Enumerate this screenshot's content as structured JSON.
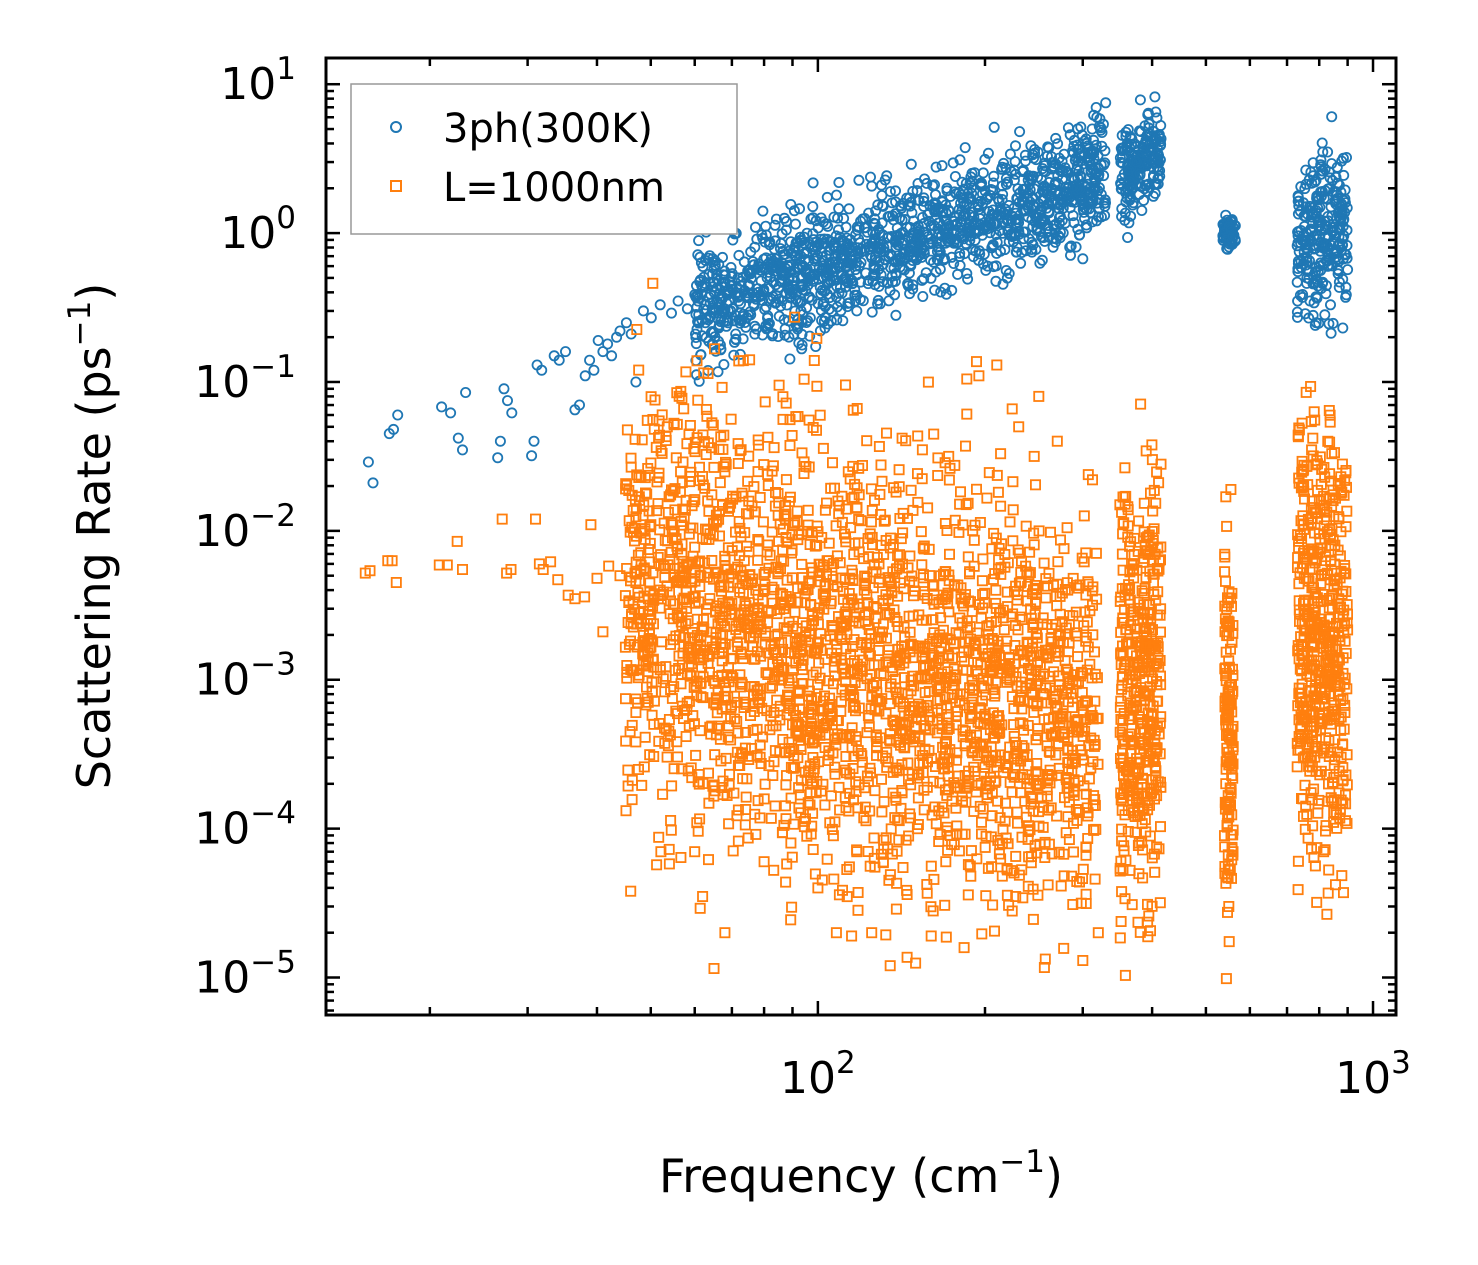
{
  "chart_data": {
    "type": "scatter",
    "xscale": "log",
    "yscale": "log",
    "xlim": [
      13,
      1100
    ],
    "ylim": [
      5.6e-06,
      15
    ],
    "xlabel": "Frequency (cm",
    "xlabel_sup": "−1",
    "xlabel_close": ")",
    "ylabel": "Scattering Rate (ps",
    "ylabel_sup": "−1",
    "ylabel_close": ")",
    "x_ticks": [
      {
        "value": 100,
        "base": "10",
        "exp": "2"
      },
      {
        "value": 1000,
        "base": "10",
        "exp": "3"
      }
    ],
    "y_ticks": [
      {
        "value": 10,
        "base": "10",
        "exp": "1"
      },
      {
        "value": 1,
        "base": "10",
        "exp": "0"
      },
      {
        "value": 0.1,
        "base": "10",
        "exp": "−1"
      },
      {
        "value": 0.01,
        "base": "10",
        "exp": "−2"
      },
      {
        "value": 0.001,
        "base": "10",
        "exp": "−3"
      },
      {
        "value": 0.0001,
        "base": "10",
        "exp": "−4"
      },
      {
        "value": 1e-05,
        "base": "10",
        "exp": "−5"
      }
    ],
    "legend_position": "top-left",
    "series": [
      {
        "name": "3ph(300K)",
        "marker": "circle",
        "color": "#1f77b4",
        "x": [
          15.5,
          15.8,
          16.9,
          17.2,
          17.5,
          21,
          21.8,
          22.5,
          22.9,
          23.2,
          26.5,
          26.8,
          27.2,
          27.6,
          28.1,
          30.5,
          30.8,
          31.2,
          31.8,
          33.5,
          34.2,
          35.1,
          36.5,
          37.2,
          38.1,
          38.8,
          39.5,
          40.2,
          41.0,
          41.8,
          42.5,
          43.4,
          44.0,
          45.2,
          46.1,
          47.0,
          48.5,
          50.1,
          52.0,
          54.5,
          56.0,
          58.2,
          60.5,
          62.8,
          65.0,
          67.2,
          70.1,
          72.5,
          75.0,
          78.2,
          81.0,
          84.0,
          87.5,
          90.2,
          94.0,
          98.0,
          102.0,
          106.0,
          110.0,
          115.0,
          120.0,
          125.0,
          130.0,
          135.0,
          140.0,
          146.0,
          152.0,
          158.0,
          165.0,
          172.0,
          180.0,
          188.0,
          196.0,
          205.0,
          214.0,
          224.0,
          234.0,
          245.0,
          256.0,
          268.0,
          280.0,
          292.0,
          305.0,
          312.0,
          318.0,
          330.0,
          365.0,
          370.0,
          375.0,
          380.0,
          385.0,
          390.0,
          395.0,
          400.0,
          405.0,
          410.0,
          540.0,
          545.0,
          550.0,
          555.0,
          560.0,
          740.0,
          750.0,
          760.0,
          770.0,
          780.0,
          790.0,
          800.0,
          810.0,
          820.0,
          830.0,
          840.0,
          850.0,
          860.0,
          870.0,
          880.0,
          890.0
        ],
        "y": [
          0.029,
          0.021,
          0.045,
          0.048,
          0.06,
          0.068,
          0.062,
          0.042,
          0.035,
          0.085,
          0.031,
          0.04,
          0.09,
          0.075,
          0.062,
          0.032,
          0.04,
          0.13,
          0.12,
          0.15,
          0.14,
          0.16,
          0.065,
          0.07,
          0.11,
          0.14,
          0.12,
          0.19,
          0.16,
          0.18,
          0.15,
          0.2,
          0.22,
          0.25,
          0.21,
          0.1,
          0.3,
          0.27,
          0.33,
          0.29,
          0.35,
          0.31,
          0.38,
          0.33,
          0.4,
          0.36,
          0.42,
          0.38,
          0.45,
          0.4,
          0.5,
          0.45,
          0.55,
          0.48,
          0.6,
          0.52,
          0.65,
          0.58,
          0.7,
          0.62,
          0.75,
          0.68,
          0.8,
          0.72,
          0.9,
          0.78,
          0.95,
          0.85,
          1.0,
          0.92,
          1.1,
          1.0,
          1.25,
          1.15,
          1.4,
          1.3,
          1.6,
          1.5,
          1.9,
          2.2,
          2.6,
          3.2,
          4.0,
          5.0,
          6.0,
          7.5,
          2.2,
          1.6,
          3.0,
          2.5,
          3.5,
          4.2,
          3.0,
          3.8,
          4.5,
          3.4,
          1.0,
          0.9,
          1.1,
          1.05,
          0.95,
          1.4,
          0.9,
          0.5,
          0.35,
          0.28,
          0.25,
          0.6,
          0.8,
          1.2,
          0.7,
          1.5,
          1.1,
          1.8,
          2.1,
          1.4,
          1.7
        ],
        "ranges": [
          {
            "x": [
              60,
              330
            ],
            "y_center_start": 0.3,
            "y_center_end": 2.5,
            "spread": 0.45,
            "count": 1400
          },
          {
            "x": [
              350,
              415
            ],
            "y_center_start": 2.2,
            "y_center_end": 3.6,
            "spread": 0.35,
            "count": 180
          },
          {
            "x": [
              535,
              565
            ],
            "y_center_start": 1.0,
            "y_center_end": 1.0,
            "spread": 0.12,
            "count": 60
          },
          {
            "x": [
              730,
              900
            ],
            "y_center_start": 0.9,
            "y_center_end": 1.1,
            "spread": 0.6,
            "count": 260
          }
        ]
      },
      {
        "name": "L=1000nm",
        "marker": "square",
        "color": "#ff7f0e",
        "x": [
          15.3,
          15.6,
          16.8,
          17.1,
          17.4,
          20.8,
          21.5,
          22.4,
          22.9,
          27.0,
          27.5,
          28.0,
          31.0,
          31.5,
          32.0,
          33.0,
          34.0,
          35.5,
          36.5,
          38.0,
          39.0,
          40.0,
          41.0,
          42.0,
          44.0,
          46.0,
          47.0,
          50.0,
          52.0,
          55.0,
          60.0,
          62.0,
          65.0,
          68.0,
          75.0,
          78.0,
          80.0,
          85.0,
          92.0,
          100.0,
          108.0,
          115.0,
          125.0,
          135.0,
          150.0,
          160.0,
          170.0,
          185.0,
          195.0,
          210.0,
          230.0,
          250.0,
          270.0,
          300.0,
          320.0
        ],
        "y": [
          0.0052,
          0.0054,
          0.0063,
          0.0063,
          0.0045,
          0.0059,
          0.0059,
          0.0085,
          0.0055,
          0.012,
          0.0052,
          0.0055,
          0.012,
          0.006,
          0.0055,
          0.0062,
          0.0047,
          0.0037,
          0.0035,
          0.0036,
          0.011,
          0.0048,
          0.0021,
          0.0058,
          0.005,
          3.8e-05,
          0.0045,
          0.011,
          0.004,
          0.0009,
          7e-05,
          3.5e-05,
          1.15e-05,
          2e-05,
          0.013,
          0.025,
          6e-05,
          0.0085,
          0.0003,
          4e-05,
          2e-05,
          1.9e-05,
          2e-05,
          1.2e-05,
          1.25e-05,
          1.9e-05,
          6e-05,
          0.015,
          0.11,
          0.13,
          0.05,
          0.08,
          0.04,
          1.3e-05,
          2e-05
        ],
        "ranges": [
          {
            "x": [
              45,
              320
            ],
            "y_center_start": 0.004,
            "y_center_end": 0.0005,
            "spread": 1.6,
            "count": 2600
          },
          {
            "x": [
              350,
              415
            ],
            "y_center_start": 0.0008,
            "y_center_end": 0.0008,
            "spread": 1.6,
            "count": 420
          },
          {
            "x": [
              540,
              560
            ],
            "y_center_start": 0.0005,
            "y_center_end": 0.0005,
            "spread": 1.5,
            "count": 140
          },
          {
            "x": [
              730,
              900
            ],
            "y_center_start": 0.002,
            "y_center_end": 0.002,
            "spread": 1.6,
            "count": 520
          }
        ]
      }
    ]
  }
}
